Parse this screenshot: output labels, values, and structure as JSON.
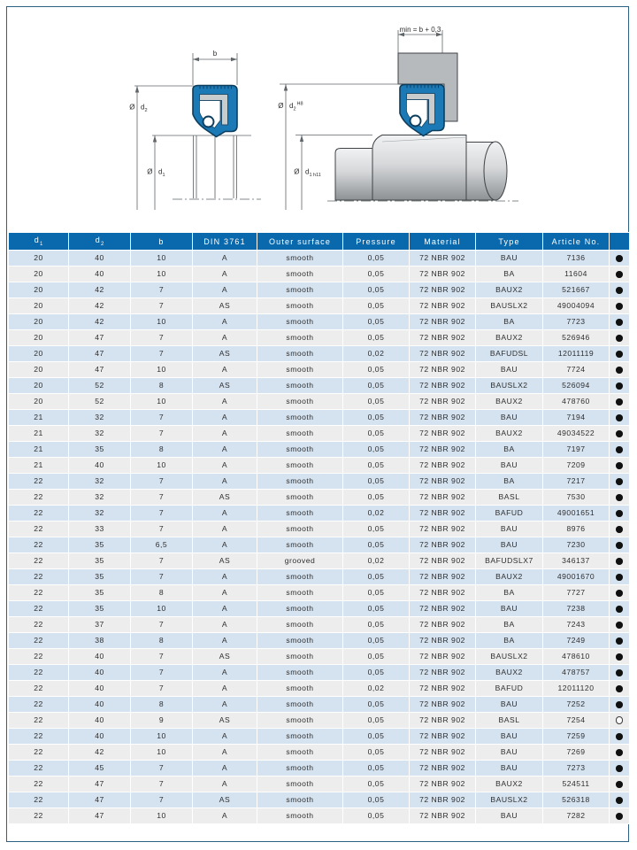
{
  "page": {
    "background": "#ffffff",
    "frame_color": "#2b6183"
  },
  "diagram": {
    "left": {
      "b_label": "b",
      "d2_prefix": "Ø",
      "d2_main": "d",
      "d2_sub": "2",
      "d1_prefix": "Ø",
      "d1_main": "d",
      "d1_sub": "1"
    },
    "right": {
      "min_label": "min = b + 0,3",
      "d2_prefix": "Ø",
      "d2_main": "d",
      "d2_sub": "2",
      "d2_sup": "H8",
      "d1_prefix": "Ø",
      "d1_main": "d",
      "d1_sub": "1 h11"
    },
    "colors": {
      "seal_blue": "#1b79b6",
      "seal_outline": "#0d3d5c",
      "insert_gray": "#c9cccd",
      "housing_gray": "#b6babd",
      "shaft_light": "#f1f2f3",
      "shaft_dark": "#8d9194",
      "dim_line": "#5f6569",
      "label_color": "#2d2d2d"
    }
  },
  "table": {
    "colors": {
      "header_bg": "#0a69ac",
      "header_text": "#ffffff",
      "row_blue": "#d5e3f1",
      "row_gray": "#ededee",
      "cell_text": "#2e2e2e"
    },
    "columns": [
      {
        "text": "d",
        "sub": "1"
      },
      {
        "text": "d",
        "sub": "2"
      },
      {
        "text": "b",
        "sub": ""
      },
      {
        "text": "DIN 3761",
        "sub": ""
      },
      {
        "text": "Outer surface",
        "sub": ""
      },
      {
        "text": "Pressure",
        "sub": ""
      },
      {
        "text": "Material",
        "sub": ""
      },
      {
        "text": "Type",
        "sub": ""
      },
      {
        "text": "Article No.",
        "sub": ""
      },
      {
        "text": "",
        "sub": ""
      }
    ],
    "rows": [
      [
        "20",
        "40",
        "10",
        "A",
        "smooth",
        "0,05",
        "72 NBR 902",
        "BAU",
        "7136",
        "filled"
      ],
      [
        "20",
        "40",
        "10",
        "A",
        "smooth",
        "0,05",
        "72 NBR 902",
        "BA",
        "11604",
        "filled"
      ],
      [
        "20",
        "42",
        "7",
        "A",
        "smooth",
        "0,05",
        "72 NBR 902",
        "BAUX2",
        "521667",
        "filled"
      ],
      [
        "20",
        "42",
        "7",
        "AS",
        "smooth",
        "0,05",
        "72 NBR 902",
        "BAUSLX2",
        "49004094",
        "filled"
      ],
      [
        "20",
        "42",
        "10",
        "A",
        "smooth",
        "0,05",
        "72 NBR 902",
        "BA",
        "7723",
        "filled"
      ],
      [
        "20",
        "47",
        "7",
        "A",
        "smooth",
        "0,05",
        "72 NBR 902",
        "BAUX2",
        "526946",
        "filled"
      ],
      [
        "20",
        "47",
        "7",
        "AS",
        "smooth",
        "0,02",
        "72 NBR 902",
        "BAFUDSL",
        "12011119",
        "filled"
      ],
      [
        "20",
        "47",
        "10",
        "A",
        "smooth",
        "0,05",
        "72 NBR 902",
        "BAU",
        "7724",
        "filled"
      ],
      [
        "20",
        "52",
        "8",
        "AS",
        "smooth",
        "0,05",
        "72 NBR 902",
        "BAUSLX2",
        "526094",
        "filled"
      ],
      [
        "20",
        "52",
        "10",
        "A",
        "smooth",
        "0,05",
        "72 NBR 902",
        "BAUX2",
        "478760",
        "filled"
      ],
      [
        "21",
        "32",
        "7",
        "A",
        "smooth",
        "0,05",
        "72 NBR 902",
        "BAU",
        "7194",
        "filled"
      ],
      [
        "21",
        "32",
        "7",
        "A",
        "smooth",
        "0,05",
        "72 NBR 902",
        "BAUX2",
        "49034522",
        "filled"
      ],
      [
        "21",
        "35",
        "8",
        "A",
        "smooth",
        "0,05",
        "72 NBR 902",
        "BA",
        "7197",
        "filled"
      ],
      [
        "21",
        "40",
        "10",
        "A",
        "smooth",
        "0,05",
        "72 NBR 902",
        "BAU",
        "7209",
        "filled"
      ],
      [
        "22",
        "32",
        "7",
        "A",
        "smooth",
        "0,05",
        "72 NBR 902",
        "BA",
        "7217",
        "filled"
      ],
      [
        "22",
        "32",
        "7",
        "AS",
        "smooth",
        "0,05",
        "72 NBR 902",
        "BASL",
        "7530",
        "filled"
      ],
      [
        "22",
        "32",
        "7",
        "A",
        "smooth",
        "0,02",
        "72 NBR 902",
        "BAFUD",
        "49001651",
        "filled"
      ],
      [
        "22",
        "33",
        "7",
        "A",
        "smooth",
        "0,05",
        "72 NBR 902",
        "BAU",
        "8976",
        "filled"
      ],
      [
        "22",
        "35",
        "6,5",
        "A",
        "smooth",
        "0,05",
        "72 NBR 902",
        "BAU",
        "7230",
        "filled"
      ],
      [
        "22",
        "35",
        "7",
        "AS",
        "grooved",
        "0,02",
        "72 NBR 902",
        "BAFUDSLX7",
        "346137",
        "filled"
      ],
      [
        "22",
        "35",
        "7",
        "A",
        "smooth",
        "0,05",
        "72 NBR 902",
        "BAUX2",
        "49001670",
        "filled"
      ],
      [
        "22",
        "35",
        "8",
        "A",
        "smooth",
        "0,05",
        "72 NBR 902",
        "BA",
        "7727",
        "filled"
      ],
      [
        "22",
        "35",
        "10",
        "A",
        "smooth",
        "0,05",
        "72 NBR 902",
        "BAU",
        "7238",
        "filled"
      ],
      [
        "22",
        "37",
        "7",
        "A",
        "smooth",
        "0,05",
        "72 NBR 902",
        "BA",
        "7243",
        "filled"
      ],
      [
        "22",
        "38",
        "8",
        "A",
        "smooth",
        "0,05",
        "72 NBR 902",
        "BA",
        "7249",
        "filled"
      ],
      [
        "22",
        "40",
        "7",
        "AS",
        "smooth",
        "0,05",
        "72 NBR 902",
        "BAUSLX2",
        "478610",
        "filled"
      ],
      [
        "22",
        "40",
        "7",
        "A",
        "smooth",
        "0,05",
        "72 NBR 902",
        "BAUX2",
        "478757",
        "filled"
      ],
      [
        "22",
        "40",
        "7",
        "A",
        "smooth",
        "0,02",
        "72 NBR 902",
        "BAFUD",
        "12011120",
        "filled"
      ],
      [
        "22",
        "40",
        "8",
        "A",
        "smooth",
        "0,05",
        "72 NBR 902",
        "BAU",
        "7252",
        "filled"
      ],
      [
        "22",
        "40",
        "9",
        "AS",
        "smooth",
        "0,05",
        "72 NBR 902",
        "BASL",
        "7254",
        "open"
      ],
      [
        "22",
        "40",
        "10",
        "A",
        "smooth",
        "0,05",
        "72 NBR 902",
        "BAU",
        "7259",
        "filled"
      ],
      [
        "22",
        "42",
        "10",
        "A",
        "smooth",
        "0,05",
        "72 NBR 902",
        "BAU",
        "7269",
        "filled"
      ],
      [
        "22",
        "45",
        "7",
        "A",
        "smooth",
        "0,05",
        "72 NBR 902",
        "BAU",
        "7273",
        "filled"
      ],
      [
        "22",
        "47",
        "7",
        "A",
        "smooth",
        "0,05",
        "72 NBR 902",
        "BAUX2",
        "524511",
        "filled"
      ],
      [
        "22",
        "47",
        "7",
        "AS",
        "smooth",
        "0,05",
        "72 NBR 902",
        "BAUSLX2",
        "526318",
        "filled"
      ],
      [
        "22",
        "47",
        "10",
        "A",
        "smooth",
        "0,05",
        "72 NBR 902",
        "BAU",
        "7282",
        "filled"
      ]
    ]
  }
}
